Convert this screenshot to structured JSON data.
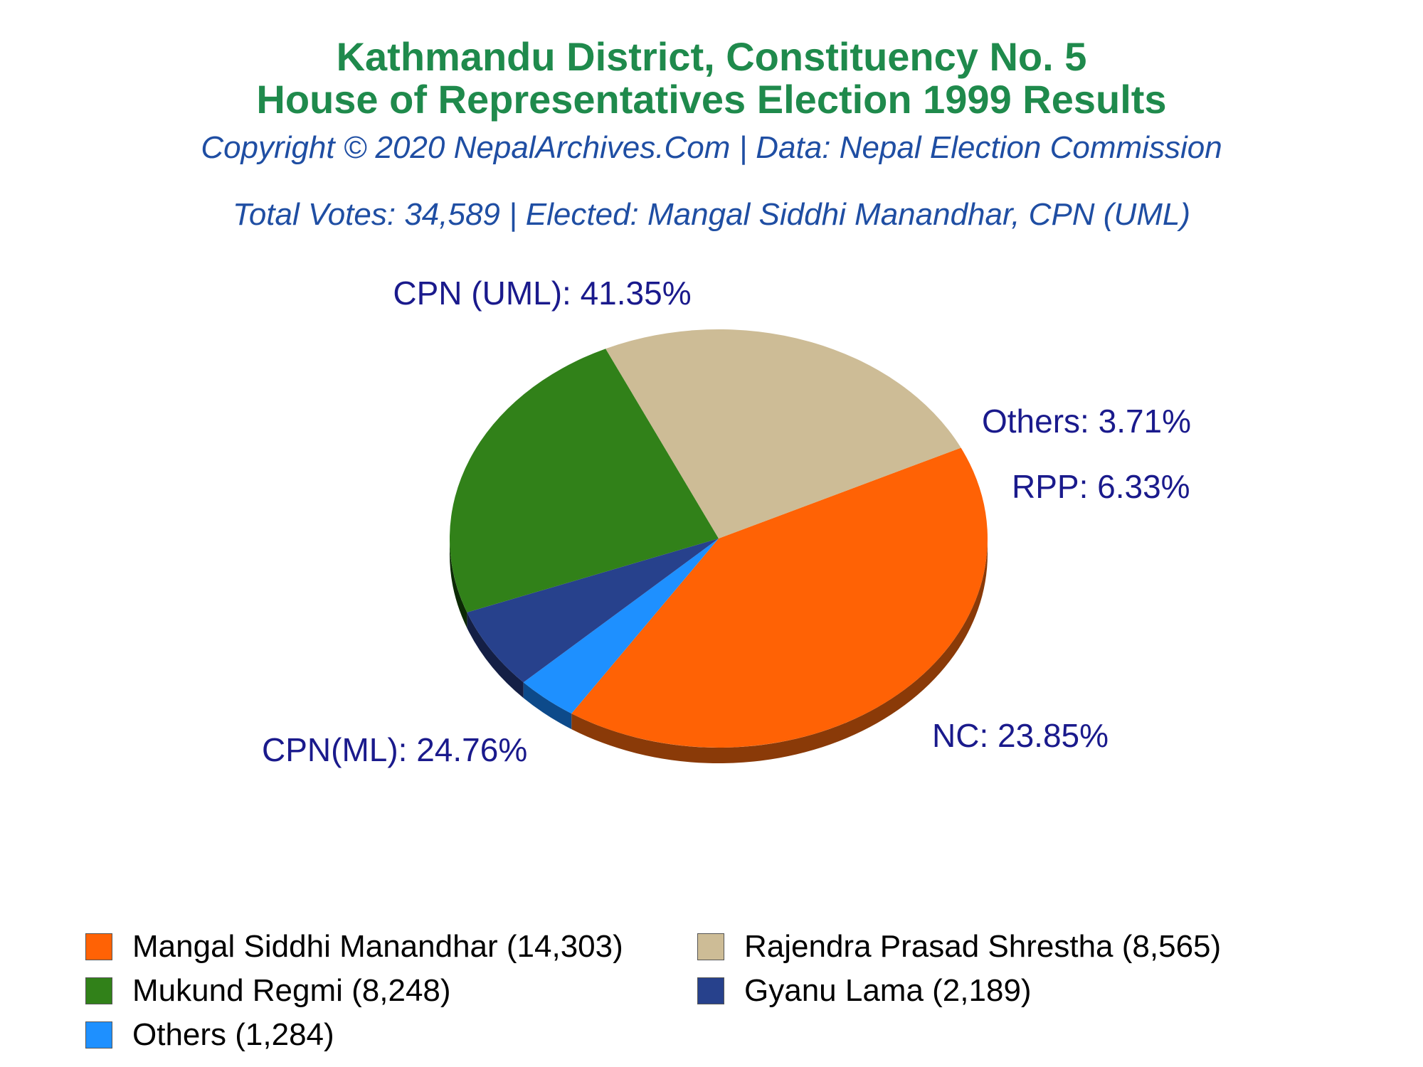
{
  "header": {
    "title_line1": "Kathmandu District, Constituency No. 5",
    "title_line2": "House of Representatives Election 1999 Results",
    "copyright": "Copyright © 2020 NepalArchives.Com | Data: Nepal Election Commission",
    "summary": "Total Votes: 34,589 | Elected: Mangal Siddhi Manandhar, CPN (UML)"
  },
  "colors": {
    "title": "#1f8a4c",
    "subtitle": "#1f4ea3",
    "slice_label": "#1a1a8c"
  },
  "chart_data": {
    "type": "pie",
    "title": "Kathmandu District, Constituency No. 5 House of Representatives Election 1999 Results",
    "total_votes": 34589,
    "start_angle_deg": -25.7,
    "slices": [
      {
        "party": "CPN (UML)",
        "candidate": "Mangal Siddhi Manandhar",
        "votes": 14303,
        "percent": 41.35,
        "label": "CPN (UML): 41.35%",
        "legend": "Mangal Siddhi Manandhar (14,303)",
        "color": "#ff6205",
        "side_color": "#8a3a08"
      },
      {
        "party": "Others",
        "candidate": "Others",
        "votes": 1284,
        "percent": 3.71,
        "label": "Others: 3.71%",
        "legend": "Others (1,284)",
        "color": "#1e90ff",
        "side_color": "#0d4a8a"
      },
      {
        "party": "RPP",
        "candidate": "Gyanu Lama",
        "votes": 2189,
        "percent": 6.33,
        "label": "RPP: 6.33%",
        "legend": "Gyanu Lama (2,189)",
        "color": "#27418c",
        "side_color": "#141f45"
      },
      {
        "party": "NC",
        "candidate": "Mukund Regmi",
        "votes": 8248,
        "percent": 23.85,
        "label": "NC: 23.85%",
        "legend": "Mukund Regmi (8,248)",
        "color": "#318119",
        "side_color": "#0c2a05"
      },
      {
        "party": "CPN(ML)",
        "candidate": "Rajendra Prasad Shrestha",
        "votes": 8565,
        "percent": 24.76,
        "label": "CPN(ML): 24.76%",
        "legend": "Rajendra Prasad Shrestha (8,565)",
        "color": "#cdbc96",
        "side_color": "#76653f"
      }
    ],
    "legend_order": [
      "Mangal Siddhi Manandhar (14,303)",
      "Rajendra Prasad Shrestha (8,565)",
      "Mukund Regmi (8,248)",
      "Gyanu Lama (2,189)",
      "Others (1,284)"
    ]
  }
}
